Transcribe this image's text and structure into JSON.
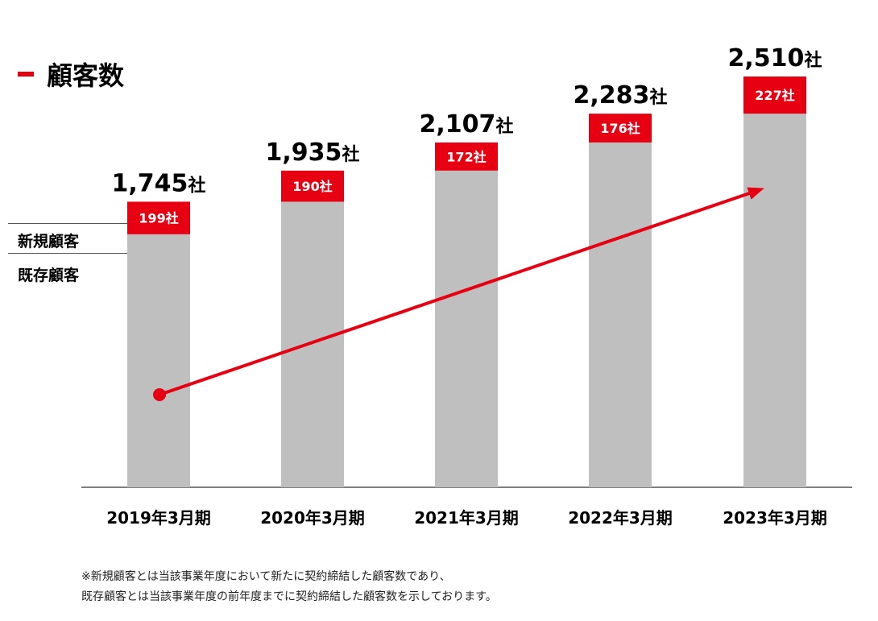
{
  "title": "顧客数",
  "legend": {
    "new": "新規顧客",
    "existing": "既存顧客"
  },
  "colors": {
    "accent": "#e60012",
    "bar": "#bfbfbf",
    "axis": "#555555"
  },
  "chart_data": {
    "type": "bar",
    "stacked": true,
    "title": "顧客数",
    "unit": "社",
    "categories": [
      "2019年3月期",
      "2020年3月期",
      "2021年3月期",
      "2022年3月期",
      "2023年3月期"
    ],
    "totals": [
      1745,
      1935,
      2107,
      2283,
      2510
    ],
    "total_labels": [
      "1,745",
      "1,935",
      "2,107",
      "2,283",
      "2,510"
    ],
    "series": [
      {
        "name": "既存顧客",
        "values": [
          1546,
          1745,
          1935,
          2107,
          2283
        ]
      },
      {
        "name": "新規顧客",
        "values": [
          199,
          190,
          172,
          176,
          227
        ],
        "labels": [
          "199社",
          "190社",
          "172社",
          "176社",
          "227社"
        ]
      }
    ],
    "ylim": [
      0,
      2510
    ],
    "trend_arrow": true
  },
  "footnote": {
    "line1": "※新規顧客とは当該事業年度において新たに契約締結した顧客数であり、",
    "line2": "既存顧客とは当該事業年度の前年度までに契約締結した顧客数を示しております。"
  }
}
